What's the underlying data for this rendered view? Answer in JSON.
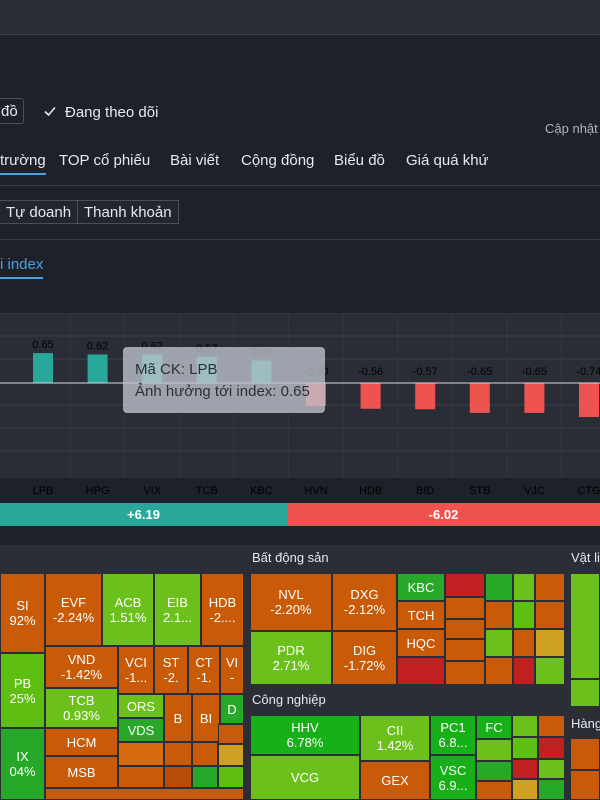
{
  "header": {
    "partial_button_label": "đồ",
    "follow_label": "Đang theo dõi",
    "updated_label": "Cập nhật"
  },
  "tabs": [
    {
      "label": "trường",
      "active": true
    },
    {
      "label": "TOP cổ phiếu",
      "active": false
    },
    {
      "label": "Bài viết",
      "active": false
    },
    {
      "label": "Cộng đồng",
      "active": false
    },
    {
      "label": "Biểu đồ",
      "active": false
    },
    {
      "label": "Giá quá khứ",
      "active": false
    }
  ],
  "subtabs": [
    "Tự doanh",
    "Thanh khoản"
  ],
  "chart_section_label": "i index",
  "chart_data": {
    "type": "bar",
    "categories": [
      "LPB",
      "HPG",
      "VIX",
      "TCB",
      "KBC",
      "HVN",
      "HDB",
      "BID",
      "STB",
      "VJC",
      "CTG"
    ],
    "values": [
      0.65,
      0.62,
      0.62,
      0.57,
      0.49,
      -0.5,
      -0.56,
      -0.57,
      -0.65,
      -0.65,
      -0.74
    ],
    "value_labels": [
      "0.65",
      "0.62",
      "0.62",
      "0.57",
      "0.49",
      "-0.50",
      "-0.56",
      "-0.57",
      "-0.65",
      "-0.65",
      "-0.74"
    ],
    "positive_color": "#2aa79b",
    "negative_color": "#ef5350",
    "grid": true
  },
  "tooltip": {
    "line1": "Mã CK: LPB",
    "line2": "Ảnh hưởng tới index: 0.65"
  },
  "summary": {
    "positive": "+6.19",
    "negative": "-6.02",
    "positive_share": 0.478,
    "positive_color": "#2aa79b",
    "negative_color": "#ef5350"
  },
  "heatmap": {
    "sections": [
      "Bất động sản",
      "Công nghiệp",
      "Vật li",
      "Hàng"
    ],
    "banks": [
      {
        "code": "SI",
        "change": "92%"
      },
      {
        "code": "EVF",
        "change": "-2.24%"
      },
      {
        "code": "ACB",
        "change": "1.51%"
      },
      {
        "code": "EIB",
        "change": "2.1..."
      },
      {
        "code": "HDB",
        "change": "-2...."
      },
      {
        "code": "PB",
        "change": "25%"
      },
      {
        "code": "VND",
        "change": "-1.42%"
      },
      {
        "code": "VCI",
        "change": "-1..."
      },
      {
        "code": "ST",
        "change": "-2."
      },
      {
        "code": "CT",
        "change": "-1."
      },
      {
        "code": "VI",
        "change": "-"
      },
      {
        "code": "TCB",
        "change": "0.93%"
      },
      {
        "code": "ORS",
        "change": ""
      },
      {
        "code": "VDS",
        "change": ""
      },
      {
        "code": "B",
        "change": ""
      },
      {
        "code": "BI",
        "change": ""
      },
      {
        "code": "D",
        "change": ""
      },
      {
        "code": "IX",
        "change": "04%"
      },
      {
        "code": "HCM",
        "change": ""
      },
      {
        "code": "MSB",
        "change": ""
      }
    ],
    "realestate": [
      {
        "code": "NVL",
        "change": "-2.20%"
      },
      {
        "code": "DXG",
        "change": "-2.12%"
      },
      {
        "code": "KBC",
        "change": ""
      },
      {
        "code": "TCH",
        "change": ""
      },
      {
        "code": "HQC",
        "change": ""
      },
      {
        "code": "PDR",
        "change": "2.71%"
      },
      {
        "code": "DIG",
        "change": "-1.72%"
      }
    ],
    "industrial": [
      {
        "code": "HHV",
        "change": "6.78%"
      },
      {
        "code": "CII",
        "change": "1.42%"
      },
      {
        "code": "PC1",
        "change": "6.8..."
      },
      {
        "code": "FC",
        "change": ""
      },
      {
        "code": "VCG",
        "change": ""
      },
      {
        "code": "GEX",
        "change": ""
      },
      {
        "code": "VSC",
        "change": "6.9..."
      }
    ]
  }
}
